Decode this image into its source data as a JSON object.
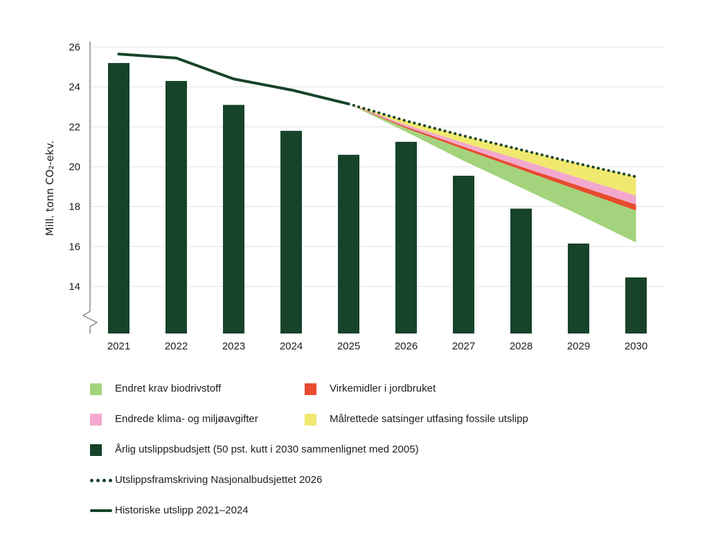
{
  "chart_data": {
    "type": "combo-bar-line-area",
    "title": "",
    "ylabel": "Mill. tonn CO₂-ekv.",
    "y_ticks": [
      26,
      24,
      22,
      20,
      18,
      16,
      14
    ],
    "ylim_visible": [
      13.0,
      26
    ],
    "axis_break": true,
    "grid": "horizontal",
    "categories": [
      "2021",
      "2022",
      "2023",
      "2024",
      "2025",
      "2026",
      "2027",
      "2028",
      "2029",
      "2030"
    ],
    "bars": {
      "name": "Årlig utslippsbudsjett (50 pst. kutt i 2030 sammenlignet med 2005)",
      "color": "#17432b",
      "values": [
        25.2,
        24.3,
        23.1,
        21.8,
        20.6,
        21.25,
        19.55,
        17.9,
        16.15,
        14.45
      ]
    },
    "historical_line": {
      "name": "Historiske utslipp 2021–2024",
      "color": "#17432b",
      "x": [
        "2021",
        "2022",
        "2023",
        "2024",
        "2025"
      ],
      "values": [
        25.65,
        25.45,
        24.4,
        23.85,
        23.15
      ]
    },
    "projection_line": {
      "name": "Utslippsframskriving Nasjonalbudsjettet 2026",
      "color": "#17432b",
      "style": "dotted",
      "x": [
        "2025",
        "2026",
        "2027",
        "2028",
        "2029",
        "2030"
      ],
      "values": [
        23.15,
        22.3,
        21.55,
        20.85,
        20.15,
        19.5
      ]
    },
    "bands": [
      {
        "name": "Målrettede satsinger utfasing fossile utslipp",
        "color": "#f1e96f",
        "x": [
          "2025",
          "2026",
          "2027",
          "2028",
          "2029",
          "2030"
        ],
        "upper": [
          23.15,
          22.3,
          21.55,
          20.85,
          20.15,
          19.5
        ],
        "lower": [
          23.15,
          22.1,
          21.2,
          20.35,
          19.45,
          18.55
        ]
      },
      {
        "name": "Endrede klima- og miljøavgifter",
        "color": "#f3a8cd",
        "x": [
          "2025",
          "2026",
          "2027",
          "2028",
          "2029",
          "2030"
        ],
        "upper": [
          23.15,
          22.1,
          21.2,
          20.35,
          19.45,
          18.55
        ],
        "lower": [
          23.15,
          22.0,
          21.0,
          20.0,
          19.05,
          18.1
        ]
      },
      {
        "name": "Virkemidler i jordbruket",
        "color": "#e84b2e",
        "x": [
          "2025",
          "2026",
          "2027",
          "2028",
          "2029",
          "2030"
        ],
        "upper": [
          23.15,
          22.0,
          21.0,
          20.0,
          19.05,
          18.1
        ],
        "lower": [
          23.15,
          21.93,
          20.88,
          19.85,
          18.82,
          17.8
        ]
      },
      {
        "name": "Endret krav biodrivstoff",
        "color": "#a3d37c",
        "x": [
          "2025",
          "2026",
          "2027",
          "2028",
          "2029",
          "2030"
        ],
        "upper": [
          23.15,
          21.93,
          20.88,
          19.85,
          18.82,
          17.8
        ],
        "lower": [
          23.15,
          21.75,
          20.3,
          18.95,
          17.6,
          16.2
        ]
      }
    ],
    "legend": [
      {
        "type": "swatch",
        "color": "#a3d37c",
        "label": "Endret krav biodrivstoff"
      },
      {
        "type": "swatch",
        "color": "#e84b2e",
        "label": "Virkemidler i jordbruket"
      },
      {
        "type": "swatch",
        "color": "#f3a8cd",
        "label": "Endrede klima- og miljøavgifter"
      },
      {
        "type": "swatch",
        "color": "#f1e96f",
        "label": "Målrettede satsinger utfasing fossile utslipp"
      },
      {
        "type": "swatch",
        "color": "#17432b",
        "label": "Årlig utslippsbudsjett (50 pst. kutt i 2030 sammenlignet med 2005)"
      },
      {
        "type": "dotted-line",
        "color": "#17432b",
        "label": "Utslippsframskriving Nasjonalbudsjettet 2026"
      },
      {
        "type": "solid-line",
        "color": "#17432b",
        "label": "Historiske utslipp 2021–2024"
      }
    ],
    "colors": {
      "dark_green": "#17432b",
      "light_green": "#a3d37c",
      "red": "#e84b2e",
      "pink": "#f3a8cd",
      "yellow": "#f1e96f",
      "gridline": "#e1e1e1",
      "axis": "#6f6f6f",
      "text": "#1c1c1c"
    }
  }
}
